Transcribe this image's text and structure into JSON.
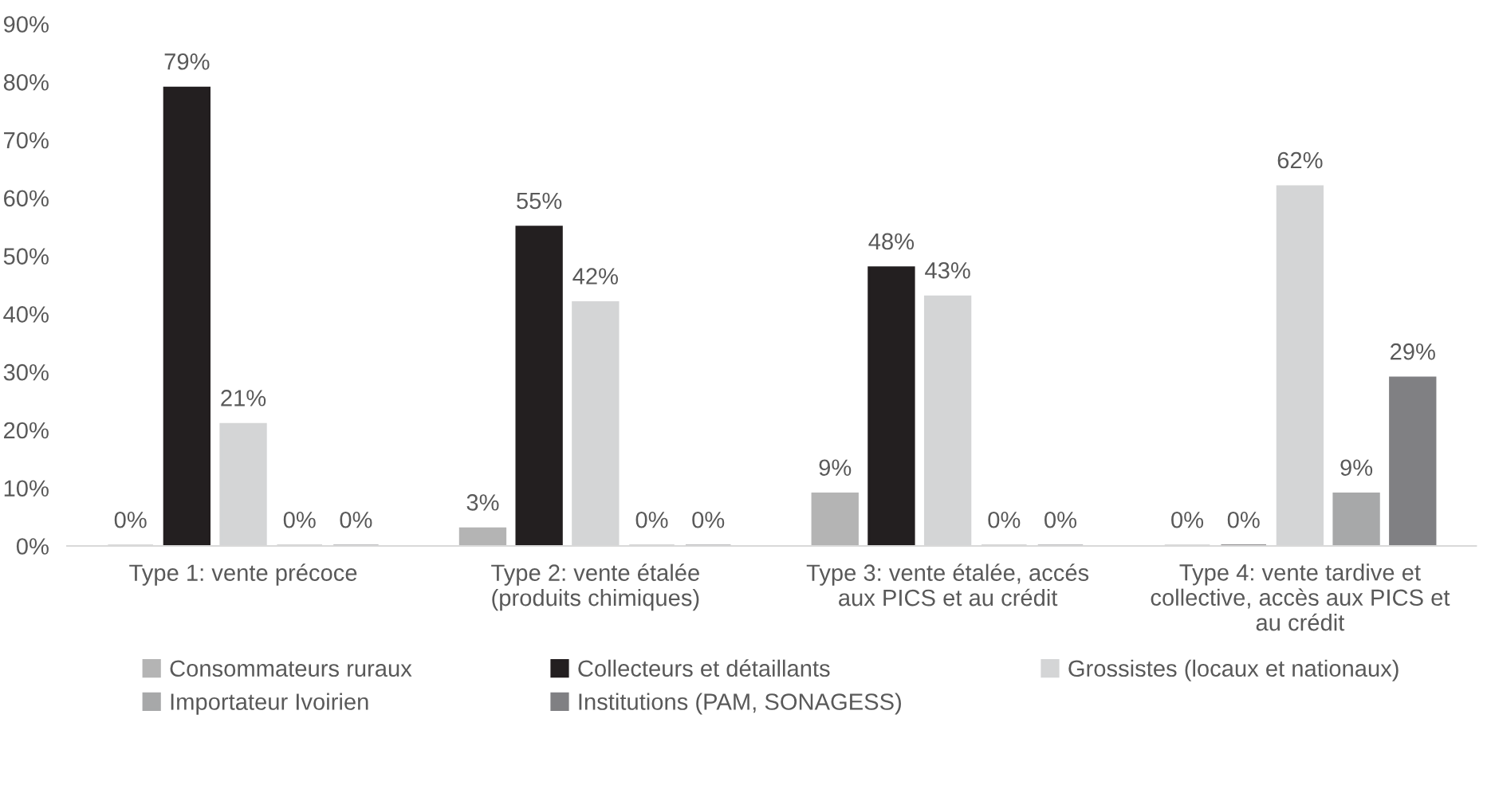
{
  "chart_data": {
    "type": "bar",
    "categories": [
      "Type 1: vente précoce",
      "Type 2: vente étalée\n(produits chimiques)",
      "Type 3: vente étalée, accés\naux PICS et au crédit",
      "Type 4: vente tardive et\ncollective, accès aux PICS et\nau crédit"
    ],
    "series": [
      {
        "name": "Consommateurs ruraux",
        "color": "#b4b4b4",
        "values": [
          0,
          3,
          9,
          0
        ],
        "value_labels": [
          "0%",
          "3%",
          "9%",
          "0%"
        ]
      },
      {
        "name": "Collecteurs et détaillants",
        "color": "#231f20",
        "values": [
          79,
          55,
          48,
          0
        ],
        "value_labels": [
          "79%",
          "55%",
          "48%",
          "0%"
        ]
      },
      {
        "name": "Grossistes (locaux et nationaux)",
        "color": "#d4d5d6",
        "values": [
          21,
          42,
          43,
          62
        ],
        "value_labels": [
          "21%",
          "42%",
          "43%",
          "62%"
        ]
      },
      {
        "name": "Importateur Ivoirien",
        "color": "#a7a8a9",
        "values": [
          0,
          0,
          0,
          9
        ],
        "value_labels": [
          "0%",
          "0%",
          "0%",
          "9%"
        ]
      },
      {
        "name": "Institutions (PAM, SONAGESS)",
        "color": "#808083",
        "values": [
          0,
          0,
          0,
          29
        ],
        "value_labels": [
          "0%",
          "0%",
          "0%",
          "29%"
        ]
      }
    ],
    "ylim": [
      0,
      90
    ],
    "yticks": [
      {
        "value": 0,
        "label": "0%"
      },
      {
        "value": 10,
        "label": "10%"
      },
      {
        "value": 20,
        "label": "20%"
      },
      {
        "value": 30,
        "label": "30%"
      },
      {
        "value": 40,
        "label": "40%"
      },
      {
        "value": 50,
        "label": "50%"
      },
      {
        "value": 60,
        "label": "60%"
      },
      {
        "value": 70,
        "label": "70%"
      },
      {
        "value": 80,
        "label": "80%"
      },
      {
        "value": 90,
        "label": "90%"
      }
    ],
    "grid": false,
    "legend": "bottom"
  }
}
